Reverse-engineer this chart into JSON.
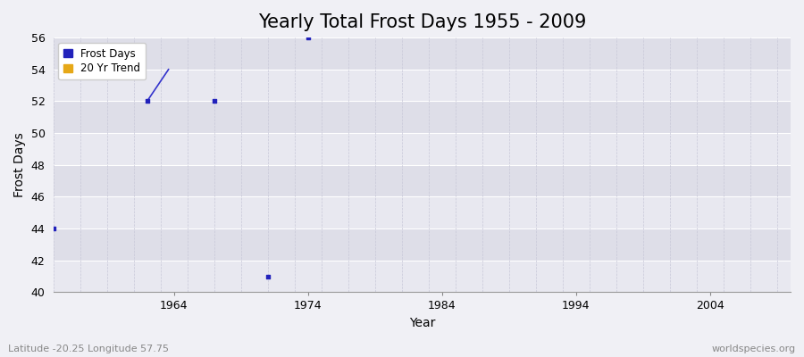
{
  "title": "Yearly Total Frost Days 1955 - 2009",
  "xlabel": "Year",
  "ylabel": "Frost Days",
  "xlim": [
    1955,
    2010
  ],
  "ylim": [
    40,
    56
  ],
  "yticks": [
    40,
    42,
    44,
    46,
    48,
    50,
    52,
    54,
    56
  ],
  "xticks": [
    1964,
    1974,
    1984,
    1994,
    2004
  ],
  "frost_days_x": [
    1955,
    1962,
    1967,
    1971,
    1974
  ],
  "frost_days_y": [
    44,
    52,
    52,
    41,
    56
  ],
  "trend_x": [
    1962.0,
    1963.6
  ],
  "trend_y": [
    52,
    54
  ],
  "bg_color": "#f0f0f5",
  "plot_bg_color": "#eaeaf2",
  "band_color_light": "#e8e8f0",
  "band_color_dark": "#dedee8",
  "point_color": "#2222bb",
  "trend_color": "#3333cc",
  "grid_h_color": "#ffffff",
  "grid_v_color": "#c8c8d8",
  "subtitle_left": "Latitude -20.25 Longitude 57.75",
  "subtitle_right": "worldspecies.org",
  "legend_frost_color": "#2222bb",
  "legend_trend_color": "#e6a817",
  "title_fontsize": 15,
  "label_fontsize": 10,
  "tick_fontsize": 9,
  "subtitle_fontsize": 8
}
